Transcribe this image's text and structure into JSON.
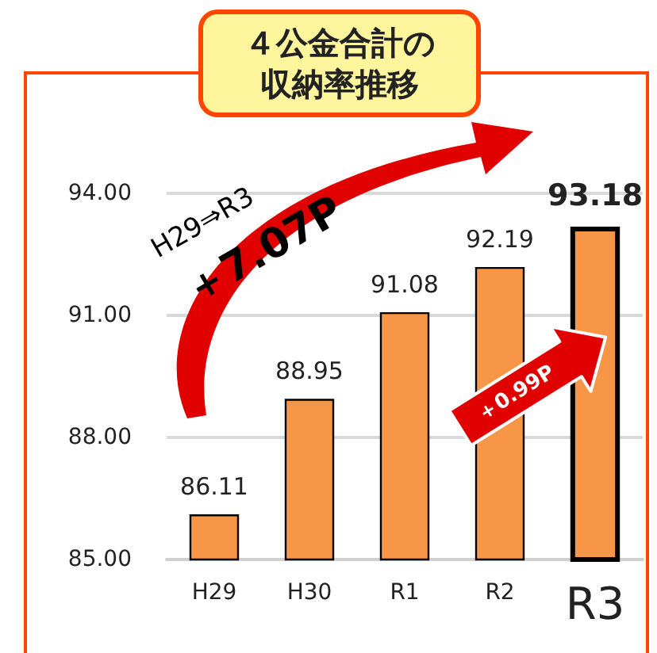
{
  "chart_data": {
    "type": "bar",
    "title": "４公金合計の収納率推移",
    "categories": [
      "H29",
      "H30",
      "R1",
      "R2",
      "R3"
    ],
    "values": [
      86.11,
      88.95,
      91.08,
      92.19,
      93.18
    ],
    "color": "#f79646",
    "ylim": [
      85,
      94
    ],
    "yticks": [
      {
        "value": 85,
        "label": "85.00"
      },
      {
        "value": 88,
        "label": "88.00"
      },
      {
        "value": 91,
        "label": "91.00"
      },
      {
        "value": 94,
        "label": "94.00"
      }
    ],
    "grid": "y",
    "data_labels": true,
    "annotations": [
      "H29⇒R3",
      "＋7.07P",
      "＋0.99P"
    ]
  }
}
